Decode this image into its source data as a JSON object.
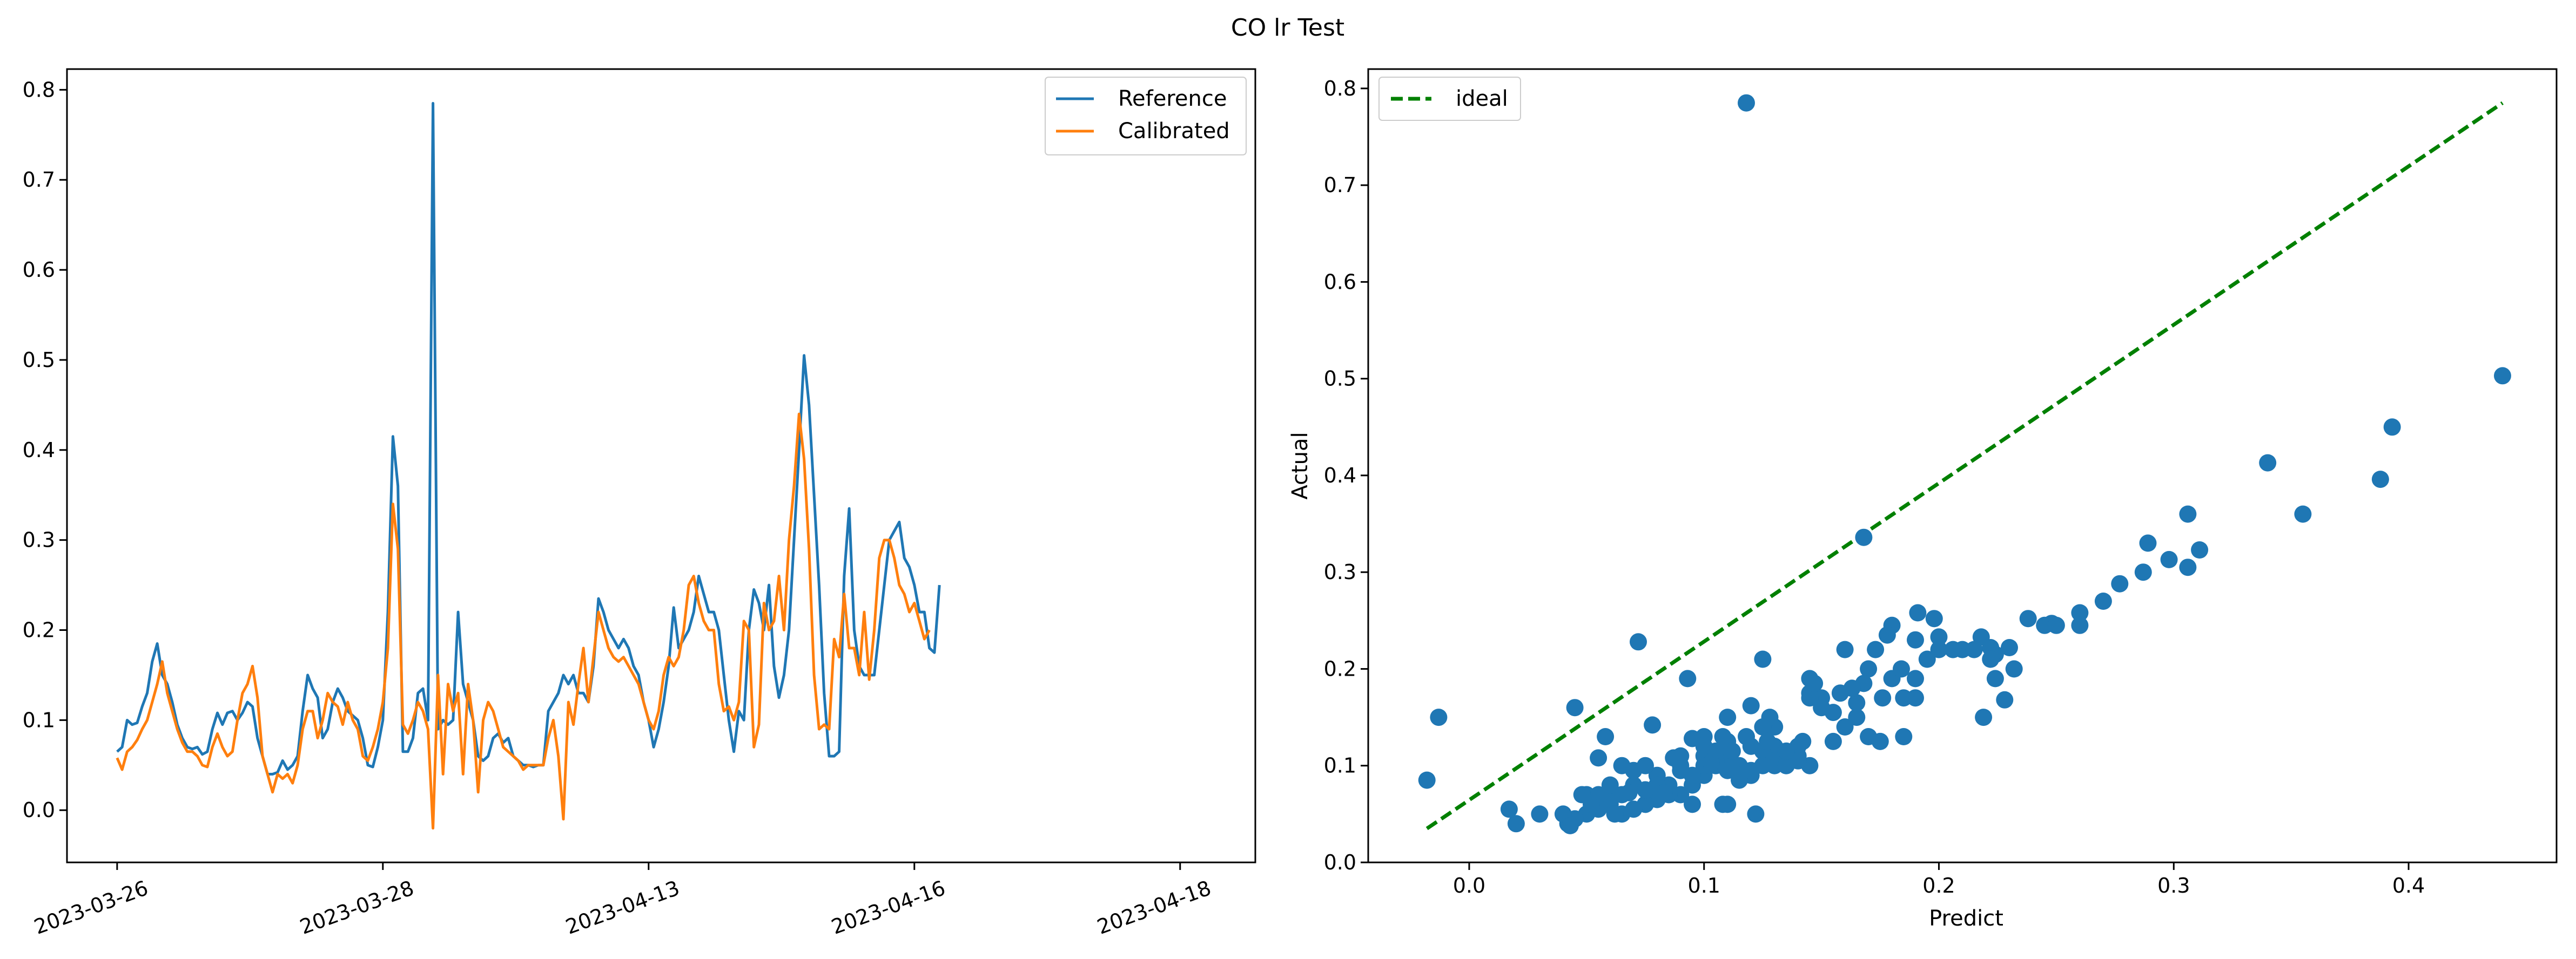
{
  "figure": {
    "title": "CO lr Test"
  },
  "chart_data": [
    {
      "type": "line",
      "title": "",
      "xlabel": "",
      "ylabel": "",
      "x_tick_labels": [
        "2023-03-26",
        "2023-03-28",
        "2023-04-13",
        "2023-04-16",
        "2023-04-18"
      ],
      "x_tick_index": [
        0,
        53,
        106,
        159,
        212
      ],
      "xlim": [
        -10,
        227
      ],
      "ylim": [
        -0.058,
        0.823
      ],
      "y_ticks": [
        "0.0",
        "0.1",
        "0.2",
        "0.3",
        "0.4",
        "0.5",
        "0.6",
        "0.7",
        "0.8"
      ],
      "grid": false,
      "legend_position": "upper right",
      "series": [
        {
          "name": "Reference",
          "color": "#1f77b4",
          "values": [
            0.065,
            0.07,
            0.1,
            0.095,
            0.097,
            0.115,
            0.13,
            0.165,
            0.185,
            0.15,
            0.14,
            0.12,
            0.095,
            0.08,
            0.07,
            0.068,
            0.07,
            0.062,
            0.065,
            0.09,
            0.108,
            0.095,
            0.108,
            0.11,
            0.1,
            0.108,
            0.12,
            0.115,
            0.08,
            0.06,
            0.04,
            0.04,
            0.042,
            0.055,
            0.045,
            0.05,
            0.06,
            0.11,
            0.15,
            0.135,
            0.125,
            0.08,
            0.09,
            0.12,
            0.135,
            0.125,
            0.11,
            0.105,
            0.1,
            0.08,
            0.05,
            0.048,
            0.07,
            0.1,
            0.22,
            0.415,
            0.36,
            0.065,
            0.065,
            0.08,
            0.13,
            0.135,
            0.1,
            0.785,
            0.09,
            0.1,
            0.095,
            0.1,
            0.22,
            0.14,
            0.12,
            0.1,
            0.06,
            0.055,
            0.06,
            0.08,
            0.085,
            0.075,
            0.08,
            0.06,
            0.055,
            0.05,
            0.05,
            0.048,
            0.05,
            0.05,
            0.11,
            0.12,
            0.13,
            0.15,
            0.14,
            0.15,
            0.13,
            0.13,
            0.12,
            0.16,
            0.235,
            0.22,
            0.2,
            0.19,
            0.18,
            0.19,
            0.18,
            0.16,
            0.15,
            0.12,
            0.1,
            0.07,
            0.09,
            0.12,
            0.16,
            0.225,
            0.18,
            0.19,
            0.2,
            0.22,
            0.26,
            0.24,
            0.22,
            0.22,
            0.2,
            0.15,
            0.1,
            0.065,
            0.11,
            0.1,
            0.2,
            0.245,
            0.23,
            0.2,
            0.25,
            0.16,
            0.125,
            0.15,
            0.2,
            0.3,
            0.4,
            0.505,
            0.45,
            0.35,
            0.25,
            0.13,
            0.06,
            0.06,
            0.065,
            0.26,
            0.335,
            0.2,
            0.16,
            0.15,
            0.15,
            0.15,
            0.2,
            0.25,
            0.3,
            0.31,
            0.32,
            0.28,
            0.27,
            0.25,
            0.22,
            0.22,
            0.18,
            0.175,
            0.25
          ]
        },
        {
          "name": "Calibrated",
          "color": "#ff7f0e",
          "values": [
            0.058,
            0.045,
            0.065,
            0.07,
            0.078,
            0.09,
            0.1,
            0.12,
            0.14,
            0.165,
            0.13,
            0.11,
            0.09,
            0.075,
            0.065,
            0.065,
            0.06,
            0.05,
            0.048,
            0.07,
            0.085,
            0.07,
            0.06,
            0.065,
            0.1,
            0.13,
            0.14,
            0.16,
            0.125,
            0.06,
            0.04,
            0.02,
            0.04,
            0.035,
            0.04,
            0.03,
            0.05,
            0.09,
            0.11,
            0.11,
            0.08,
            0.1,
            0.13,
            0.12,
            0.115,
            0.095,
            0.12,
            0.1,
            0.09,
            0.06,
            0.055,
            0.07,
            0.09,
            0.12,
            0.18,
            0.34,
            0.29,
            0.095,
            0.085,
            0.1,
            0.12,
            0.11,
            0.09,
            -0.02,
            0.15,
            0.04,
            0.14,
            0.11,
            0.13,
            0.04,
            0.14,
            0.1,
            0.02,
            0.1,
            0.12,
            0.11,
            0.09,
            0.07,
            0.065,
            0.06,
            0.055,
            0.045,
            0.05,
            0.05,
            0.05,
            0.05,
            0.08,
            0.1,
            0.06,
            -0.01,
            0.12,
            0.095,
            0.14,
            0.18,
            0.12,
            0.17,
            0.22,
            0.2,
            0.18,
            0.17,
            0.165,
            0.17,
            0.16,
            0.15,
            0.14,
            0.12,
            0.1,
            0.09,
            0.11,
            0.15,
            0.17,
            0.16,
            0.17,
            0.2,
            0.25,
            0.26,
            0.23,
            0.21,
            0.2,
            0.2,
            0.14,
            0.11,
            0.115,
            0.1,
            0.12,
            0.21,
            0.2,
            0.07,
            0.095,
            0.23,
            0.2,
            0.21,
            0.26,
            0.2,
            0.3,
            0.36,
            0.44,
            0.39,
            0.29,
            0.15,
            0.09,
            0.095,
            0.09,
            0.19,
            0.17,
            0.24,
            0.18,
            0.18,
            0.15,
            0.22,
            0.145,
            0.2,
            0.28,
            0.3,
            0.3,
            0.28,
            0.25,
            0.24,
            0.22,
            0.23,
            0.21,
            0.19,
            0.2
          ]
        }
      ]
    },
    {
      "type": "scatter",
      "title": "",
      "xlabel": "Predict",
      "ylabel": "Actual",
      "xlim": [
        -0.043,
        0.463
      ],
      "ylim": [
        0.0,
        0.82
      ],
      "x_ticks": [
        "0.0",
        "0.1",
        "0.2",
        "0.3",
        "0.4"
      ],
      "y_ticks": [
        "0.0",
        "0.1",
        "0.2",
        "0.3",
        "0.4",
        "0.5",
        "0.6",
        "0.7",
        "0.8"
      ],
      "grid": false,
      "legend_position": "upper left",
      "ideal_line": {
        "name": "ideal",
        "color": "#008000",
        "from": [
          -0.018,
          0.035
        ],
        "to": [
          0.44,
          0.785
        ]
      },
      "points_color": "#1f77b4",
      "points": [
        [
          0.118,
          0.785
        ],
        [
          0.44,
          0.503
        ],
        [
          0.393,
          0.45
        ],
        [
          0.34,
          0.413
        ],
        [
          0.388,
          0.396
        ],
        [
          0.355,
          0.36
        ],
        [
          0.306,
          0.36
        ],
        [
          0.311,
          0.323
        ],
        [
          0.289,
          0.33
        ],
        [
          0.298,
          0.313
        ],
        [
          0.306,
          0.305
        ],
        [
          0.287,
          0.3
        ],
        [
          0.277,
          0.288
        ],
        [
          0.27,
          0.27
        ],
        [
          0.26,
          0.258
        ],
        [
          0.248,
          0.247
        ],
        [
          0.238,
          0.252
        ],
        [
          0.218,
          0.233
        ],
        [
          0.2,
          0.233
        ],
        [
          0.198,
          0.252
        ],
        [
          0.191,
          0.258
        ],
        [
          0.18,
          0.245
        ],
        [
          0.168,
          0.336
        ],
        [
          0.178,
          0.235
        ],
        [
          0.072,
          0.228
        ],
        [
          0.125,
          0.21
        ],
        [
          0.222,
          0.222
        ],
        [
          0.224,
          0.215
        ],
        [
          0.23,
          0.222
        ],
        [
          0.245,
          0.245
        ],
        [
          0.232,
          0.2
        ],
        [
          0.224,
          0.19
        ],
        [
          0.219,
          0.15
        ],
        [
          0.228,
          0.168
        ],
        [
          0.26,
          0.245
        ],
        [
          0.25,
          0.245
        ],
        [
          0.21,
          0.22
        ],
        [
          0.2,
          0.22
        ],
        [
          0.19,
          0.23
        ],
        [
          0.16,
          0.22
        ],
        [
          0.17,
          0.2
        ],
        [
          0.18,
          0.19
        ],
        [
          0.19,
          0.19
        ],
        [
          0.184,
          0.2
        ],
        [
          0.176,
          0.17
        ],
        [
          0.168,
          0.185
        ],
        [
          0.158,
          0.175
        ],
        [
          0.145,
          0.19
        ],
        [
          0.145,
          0.175
        ],
        [
          0.15,
          0.17
        ],
        [
          0.16,
          0.14
        ],
        [
          0.165,
          0.15
        ],
        [
          0.17,
          0.13
        ],
        [
          0.175,
          0.125
        ],
        [
          0.185,
          0.13
        ],
        [
          0.185,
          0.17
        ],
        [
          0.19,
          0.17
        ],
        [
          0.155,
          0.125
        ],
        [
          0.14,
          0.11
        ],
        [
          0.145,
          0.1
        ],
        [
          0.13,
          0.14
        ],
        [
          0.128,
          0.15
        ],
        [
          0.12,
          0.162
        ],
        [
          0.125,
          0.14
        ],
        [
          0.118,
          0.13
        ],
        [
          0.11,
          0.15
        ],
        [
          0.108,
          0.13
        ],
        [
          0.1,
          0.13
        ],
        [
          0.095,
          0.128
        ],
        [
          0.093,
          0.19
        ],
        [
          0.045,
          0.16
        ],
        [
          0.058,
          0.13
        ],
        [
          0.055,
          0.108
        ],
        [
          0.065,
          0.1
        ],
        [
          0.07,
          0.08
        ],
        [
          0.08,
          0.09
        ],
        [
          0.09,
          0.1
        ],
        [
          0.1,
          0.11
        ],
        [
          0.105,
          0.1
        ],
        [
          0.11,
          0.11
        ],
        [
          0.115,
          0.1
        ],
        [
          0.12,
          0.12
        ],
        [
          0.125,
          0.115
        ],
        [
          0.13,
          0.12
        ],
        [
          0.135,
          0.11
        ],
        [
          0.14,
          0.12
        ],
        [
          0.13,
          0.1
        ],
        [
          0.12,
          0.09
        ],
        [
          0.115,
          0.085
        ],
        [
          0.11,
          0.06
        ],
        [
          0.108,
          0.06
        ],
        [
          0.122,
          0.05
        ],
        [
          0.1,
          0.09
        ],
        [
          0.095,
          0.08
        ],
        [
          0.09,
          0.07
        ],
        [
          0.085,
          0.07
        ],
        [
          0.08,
          0.065
        ],
        [
          0.075,
          0.06
        ],
        [
          0.07,
          0.055
        ],
        [
          0.065,
          0.05
        ],
        [
          0.06,
          0.06
        ],
        [
          0.055,
          0.055
        ],
        [
          0.05,
          0.05
        ],
        [
          0.045,
          0.045
        ],
        [
          0.042,
          0.04
        ],
        [
          0.04,
          0.05
        ],
        [
          0.03,
          0.05
        ],
        [
          0.02,
          0.04
        ],
        [
          0.017,
          0.055
        ],
        [
          0.05,
          0.07
        ],
        [
          0.06,
          0.065
        ],
        [
          0.065,
          0.07
        ],
        [
          0.075,
          0.075
        ],
        [
          0.085,
          0.08
        ],
        [
          0.09,
          0.095
        ],
        [
          0.095,
          0.09
        ],
        [
          0.1,
          0.1
        ],
        [
          0.105,
          0.105
        ],
        [
          0.11,
          0.095
        ],
        [
          0.115,
          0.09
        ],
        [
          0.12,
          0.095
        ],
        [
          0.125,
          0.1
        ],
        [
          0.13,
          0.105
        ],
        [
          0.135,
          0.1
        ],
        [
          0.14,
          0.105
        ],
        [
          0.07,
          0.095
        ],
        [
          0.075,
          0.1
        ],
        [
          0.08,
          0.08
        ],
        [
          0.09,
          0.11
        ],
        [
          0.1,
          0.12
        ],
        [
          0.105,
          0.115
        ],
        [
          0.11,
          0.125
        ],
        [
          0.135,
          0.115
        ],
        [
          0.145,
          0.17
        ],
        [
          0.15,
          0.16
        ],
        [
          0.155,
          0.155
        ],
        [
          0.165,
          0.165
        ],
        [
          0.06,
          0.08
        ],
        [
          0.055,
          0.07
        ],
        [
          -0.018,
          0.085
        ],
        [
          -0.013,
          0.15
        ],
        [
          0.048,
          0.07
        ],
        [
          0.052,
          0.06
        ],
        [
          0.043,
          0.038
        ],
        [
          0.062,
          0.05
        ],
        [
          0.078,
          0.142
        ],
        [
          0.068,
          0.072
        ],
        [
          0.083,
          0.072
        ],
        [
          0.087,
          0.108
        ],
        [
          0.095,
          0.06
        ],
        [
          0.103,
          0.103
        ],
        [
          0.112,
          0.115
        ],
        [
          0.127,
          0.125
        ],
        [
          0.142,
          0.125
        ],
        [
          0.147,
          0.185
        ],
        [
          0.163,
          0.18
        ],
        [
          0.173,
          0.22
        ],
        [
          0.195,
          0.21
        ],
        [
          0.206,
          0.22
        ],
        [
          0.215,
          0.22
        ],
        [
          0.222,
          0.21
        ]
      ]
    }
  ]
}
